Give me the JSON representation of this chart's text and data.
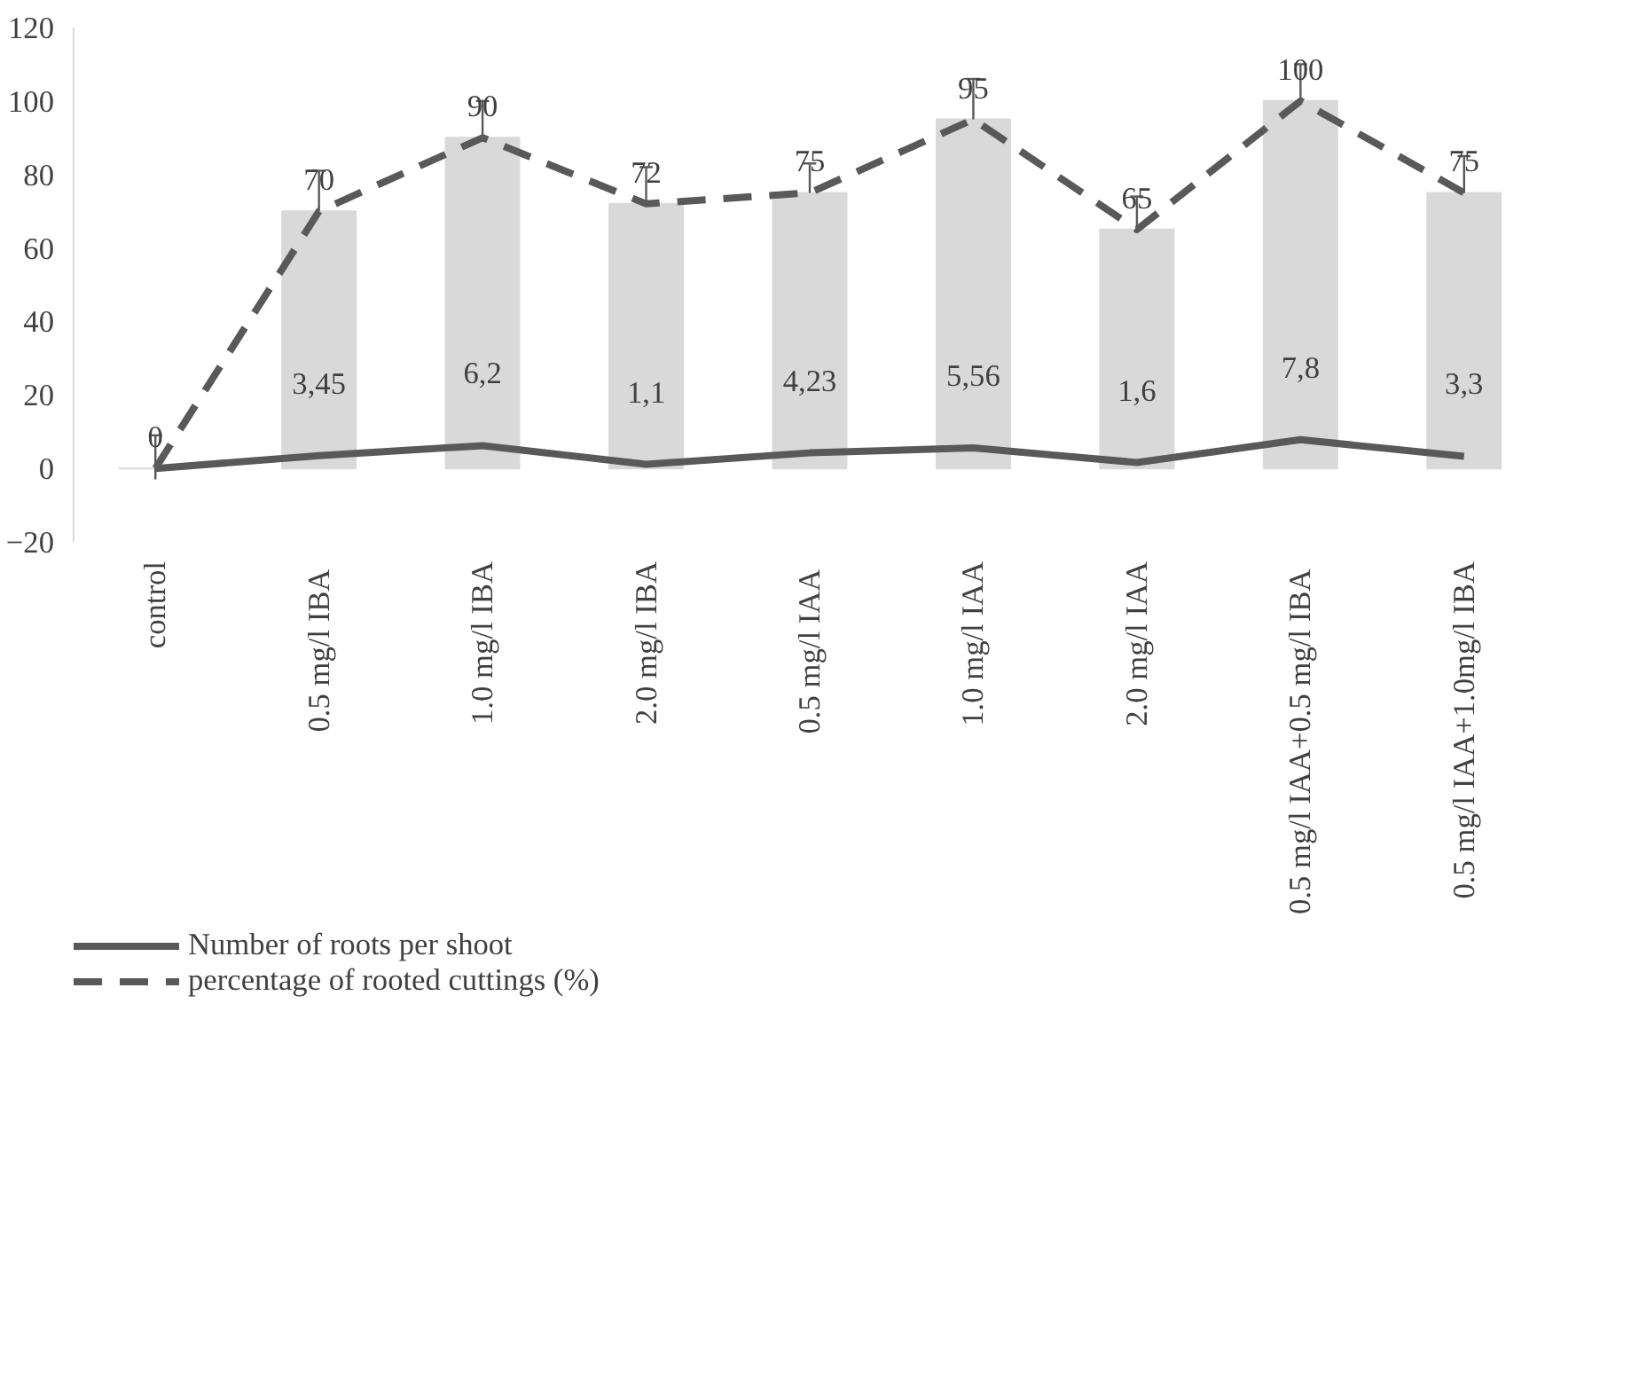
{
  "chart_data": {
    "type": "bar",
    "categories": [
      "control",
      "0.5 mg/l  IBA",
      "1.0 mg/l IBA",
      "2.0 mg/l IBA",
      "0.5 mg/l  IAA",
      "1.0 mg/l IAA",
      "2.0 mg/l IAA",
      "0.5 mg/l  IAA+0.5 mg/l IBA",
      "0.5 mg/l IAA+1.0mg/l IBA"
    ],
    "series": [
      {
        "color": "#d9d9d9",
        "values": [
          0,
          70,
          90,
          72,
          75,
          95,
          65,
          100,
          75
        ],
        "errors": [
          [
            -3,
            9
          ],
          [
            70,
            81
          ],
          [
            90,
            100
          ],
          [
            72,
            82
          ],
          [
            75,
            83
          ],
          [
            95,
            106
          ],
          [
            65,
            74
          ],
          [
            100,
            110
          ],
          [
            75,
            85
          ]
        ]
      },
      {
        "type": "line",
        "name": "Number of roots per shoot",
        "color": "#595959",
        "line_style": "solid",
        "values": [
          0,
          3.45,
          6.2,
          1.1,
          4.23,
          5.56,
          1.6,
          7.8,
          3.3
        ],
        "value_labels": [
          null,
          "3,45",
          "6,2",
          "1,1",
          "4,23",
          "5,56",
          "1,6",
          "7,8",
          "3,3"
        ]
      },
      {
        "type": "line",
        "name": "percentage of rooted cuttings (%)",
        "color": "#595959",
        "line_style": "dashed",
        "values": [
          0,
          70,
          90,
          72,
          75,
          95,
          65,
          100,
          75
        ],
        "value_labels": [
          "0",
          "70",
          "90",
          "72",
          "75",
          "95",
          "65",
          "100",
          "75"
        ]
      }
    ],
    "ylim": [
      -20,
      120
    ],
    "yticks": [
      -20,
      0,
      20,
      40,
      60,
      80,
      100,
      120
    ],
    "grid": false,
    "legend": "bottom left",
    "marker": "none"
  }
}
